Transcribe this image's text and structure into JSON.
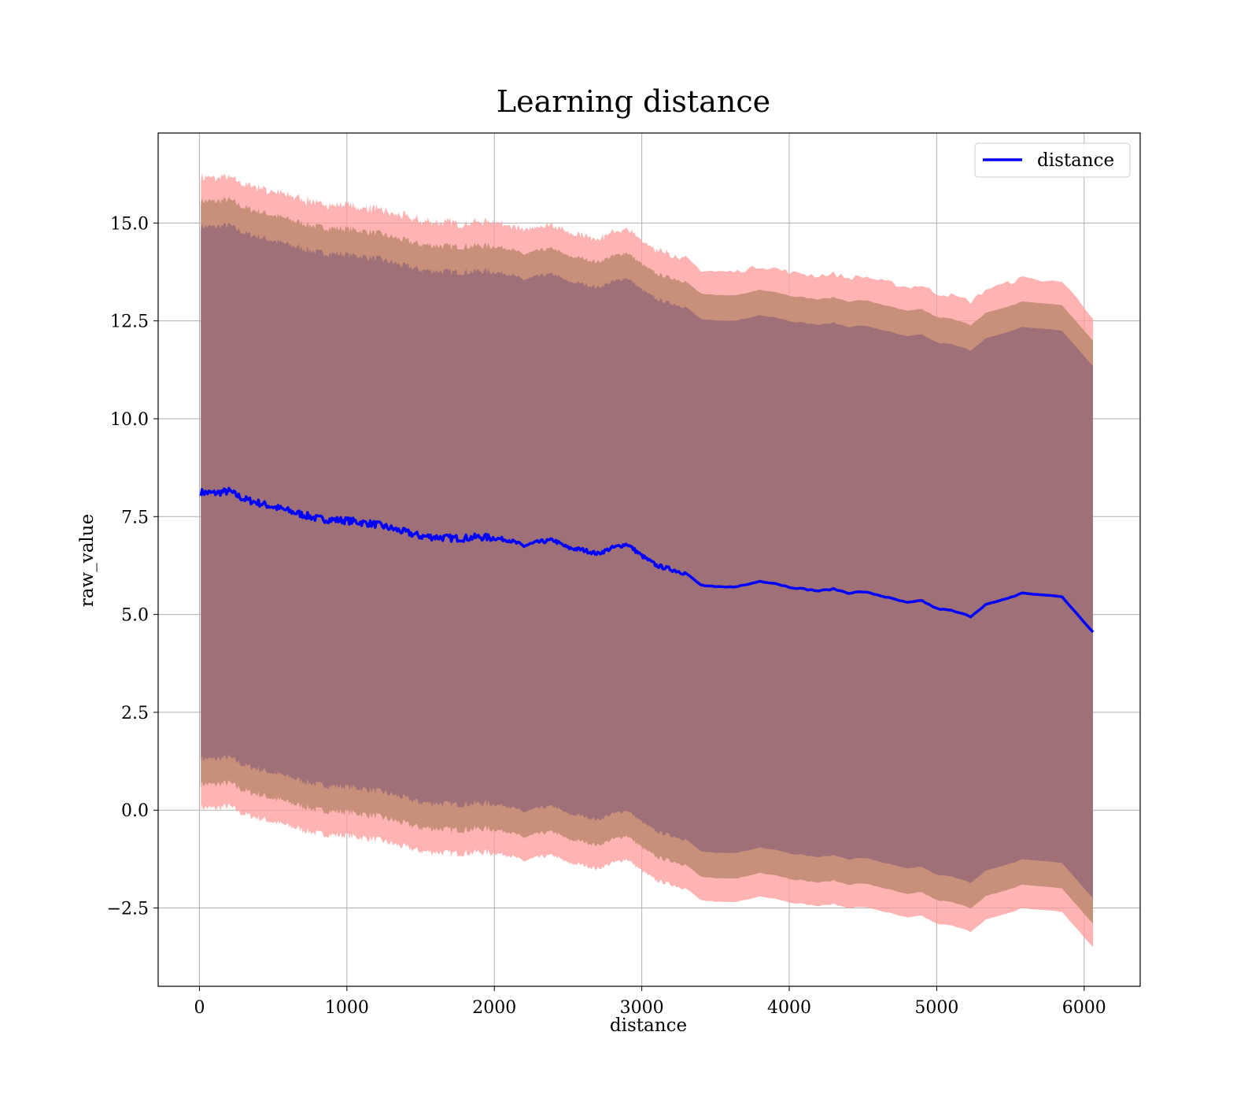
{
  "chart_data": {
    "type": "area",
    "title": "Learning distance",
    "xlabel": "distance",
    "ylabel": "raw_value",
    "xlim": [
      -280,
      6380
    ],
    "ylim": [
      -4.5,
      17.3
    ],
    "xticks": [
      0,
      1000,
      2000,
      3000,
      4000,
      5000,
      6000
    ],
    "xtick_labels": [
      "0",
      "1000",
      "2000",
      "3000",
      "4000",
      "5000",
      "6000"
    ],
    "yticks": [
      -2.5,
      0.0,
      2.5,
      5.0,
      7.5,
      10.0,
      12.5,
      15.0
    ],
    "ytick_labels": [
      "−2.5",
      "0.0",
      "2.5",
      "5.0",
      "7.5",
      "10.0",
      "12.5",
      "15.0"
    ],
    "grid": true,
    "legend": {
      "position": "top-right",
      "entries": [
        {
          "label": "distance",
          "color": "#0000ff"
        }
      ]
    },
    "colors": {
      "line": "#0000ff",
      "band_outer": "#ff9999",
      "band_middle": "#c8907a",
      "band_inner": "#a07078"
    },
    "series": [
      {
        "name": "distance",
        "x": [
          10,
          100,
          200,
          300,
          400,
          500,
          600,
          700,
          800,
          900,
          1000,
          1100,
          1200,
          1300,
          1400,
          1500,
          1600,
          1700,
          1800,
          1900,
          2000,
          2100,
          2200,
          2300,
          2400,
          2500,
          2600,
          2700,
          2800,
          2900,
          3000,
          3100,
          3200,
          3300,
          3400,
          3500,
          3600,
          3700,
          3800,
          3900,
          4000,
          4100,
          4200,
          4300,
          4400,
          4500,
          4600,
          4700,
          4800,
          4900,
          5000,
          5100,
          5230,
          5330,
          5480,
          5580,
          5850,
          6060
        ],
        "y": [
          8.12,
          8.1,
          8.15,
          7.95,
          7.85,
          7.75,
          7.65,
          7.55,
          7.45,
          7.42,
          7.4,
          7.35,
          7.3,
          7.2,
          7.1,
          7.0,
          6.98,
          6.95,
          6.95,
          6.98,
          6.95,
          6.9,
          6.75,
          6.85,
          6.9,
          6.7,
          6.65,
          6.55,
          6.7,
          6.8,
          6.5,
          6.25,
          6.15,
          6.05,
          5.75,
          5.7,
          5.7,
          5.75,
          5.85,
          5.8,
          5.7,
          5.65,
          5.6,
          5.65,
          5.55,
          5.58,
          5.5,
          5.4,
          5.3,
          5.35,
          5.15,
          5.1,
          4.95,
          5.25,
          5.4,
          5.55,
          5.45,
          4.55
        ]
      }
    ]
  }
}
